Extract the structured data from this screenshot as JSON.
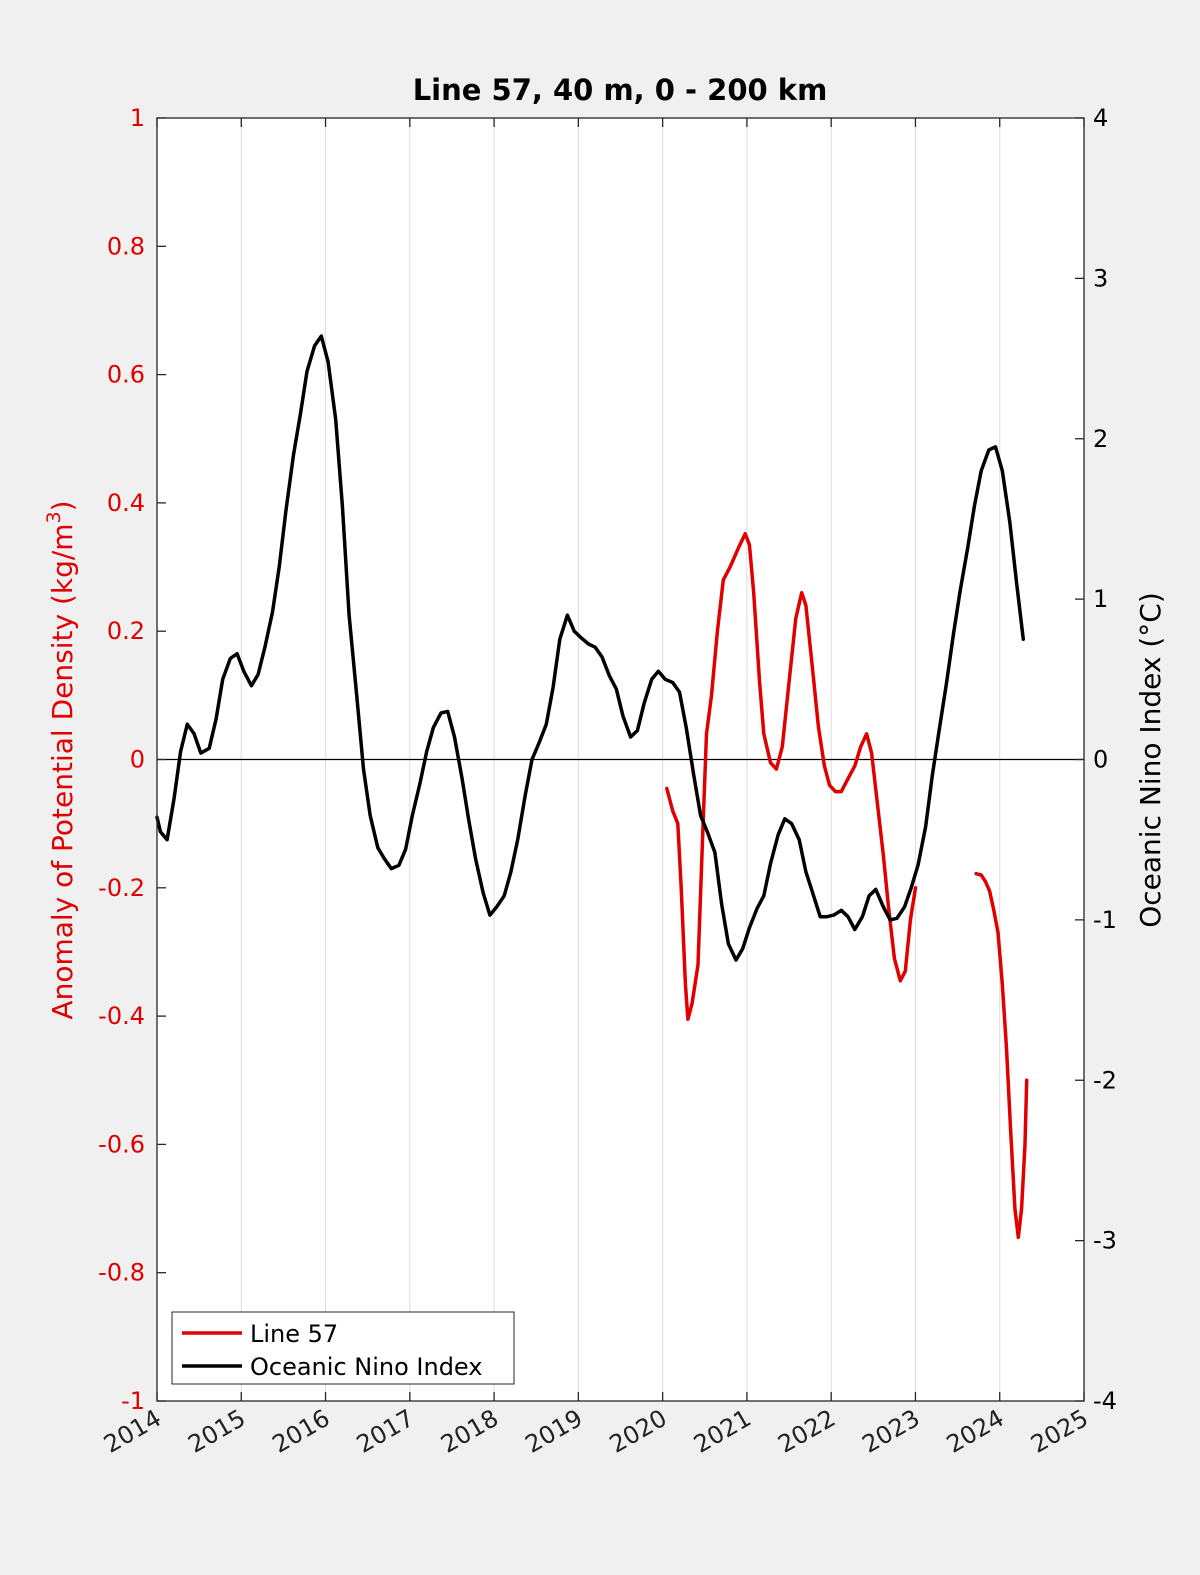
{
  "chart_data": {
    "type": "line",
    "title": "Line 57, 40 m, 0 - 200 km",
    "xlabel": "",
    "xlim": [
      2014,
      2025
    ],
    "x_ticks": [
      "2014",
      "2015",
      "2016",
      "2017",
      "2018",
      "2019",
      "2020",
      "2021",
      "2022",
      "2023",
      "2024",
      "2025"
    ],
    "y_left": {
      "label_main": "Anomaly of Potential Density (kg/m",
      "label_sup": "3",
      "label_end": ")",
      "ylim": [
        -1,
        1
      ],
      "ticks": [
        "1",
        "0.8",
        "0.6",
        "0.4",
        "0.2",
        "0",
        "-0.2",
        "-0.4",
        "-0.6",
        "-0.8",
        "-1"
      ]
    },
    "y_right": {
      "label": "Oceanic Nino Index (°C)",
      "ylim": [
        -4,
        4
      ],
      "ticks": [
        "4",
        "3",
        "2",
        "1",
        "0",
        "-1",
        "-2",
        "-3",
        "-4"
      ]
    },
    "grid": "vertical",
    "legend_position": "bottom-left",
    "series": [
      {
        "name": "Line 57",
        "axis": "left",
        "color": "#e00000",
        "segments": [
          [
            [
              2020.05,
              -0.045
            ],
            [
              2020.12,
              -0.08
            ],
            [
              2020.18,
              -0.1
            ],
            [
              2020.22,
              -0.2
            ],
            [
              2020.27,
              -0.35
            ],
            [
              2020.3,
              -0.405
            ],
            [
              2020.35,
              -0.38
            ],
            [
              2020.42,
              -0.32
            ],
            [
              2020.48,
              -0.1
            ],
            [
              2020.52,
              0.04
            ],
            [
              2020.58,
              0.1
            ],
            [
              2020.65,
              0.2
            ],
            [
              2020.72,
              0.28
            ],
            [
              2020.8,
              0.3
            ],
            [
              2020.9,
              0.33
            ],
            [
              2020.98,
              0.352
            ],
            [
              2021.03,
              0.335
            ],
            [
              2021.08,
              0.26
            ],
            [
              2021.15,
              0.12
            ],
            [
              2021.2,
              0.04
            ],
            [
              2021.28,
              -0.005
            ],
            [
              2021.35,
              -0.015
            ],
            [
              2021.42,
              0.02
            ],
            [
              2021.5,
              0.12
            ],
            [
              2021.58,
              0.22
            ],
            [
              2021.65,
              0.26
            ],
            [
              2021.7,
              0.24
            ],
            [
              2021.78,
              0.14
            ],
            [
              2021.85,
              0.05
            ],
            [
              2021.92,
              -0.01
            ],
            [
              2021.98,
              -0.04
            ],
            [
              2022.05,
              -0.05
            ],
            [
              2022.12,
              -0.05
            ],
            [
              2022.2,
              -0.03
            ],
            [
              2022.28,
              -0.01
            ],
            [
              2022.35,
              0.02
            ],
            [
              2022.42,
              0.04
            ],
            [
              2022.48,
              0.01
            ],
            [
              2022.55,
              -0.07
            ],
            [
              2022.62,
              -0.15
            ],
            [
              2022.68,
              -0.23
            ],
            [
              2022.75,
              -0.31
            ],
            [
              2022.82,
              -0.345
            ],
            [
              2022.88,
              -0.33
            ],
            [
              2022.94,
              -0.25
            ],
            [
              2023.0,
              -0.2
            ]
          ],
          [
            [
              2023.72,
              -0.178
            ],
            [
              2023.78,
              -0.18
            ],
            [
              2023.83,
              -0.19
            ],
            [
              2023.88,
              -0.205
            ],
            [
              2023.93,
              -0.235
            ],
            [
              2023.98,
              -0.27
            ],
            [
              2024.03,
              -0.35
            ],
            [
              2024.08,
              -0.45
            ],
            [
              2024.13,
              -0.58
            ],
            [
              2024.18,
              -0.7
            ],
            [
              2024.22,
              -0.745
            ],
            [
              2024.26,
              -0.7
            ],
            [
              2024.3,
              -0.6
            ],
            [
              2024.32,
              -0.5
            ]
          ]
        ]
      },
      {
        "name": "Oceanic Nino Index",
        "axis": "right",
        "color": "#000000",
        "segments": [
          [
            [
              2014.0,
              -0.36
            ],
            [
              2014.04,
              -0.45
            ],
            [
              2014.12,
              -0.5
            ],
            [
              2014.2,
              -0.25
            ],
            [
              2014.28,
              0.05
            ],
            [
              2014.36,
              0.22
            ],
            [
              2014.44,
              0.16
            ],
            [
              2014.52,
              0.04
            ],
            [
              2014.62,
              0.07
            ],
            [
              2014.7,
              0.25
            ],
            [
              2014.78,
              0.5
            ],
            [
              2014.87,
              0.63
            ],
            [
              2014.95,
              0.66
            ],
            [
              2015.03,
              0.55
            ],
            [
              2015.12,
              0.46
            ],
            [
              2015.2,
              0.53
            ],
            [
              2015.28,
              0.7
            ],
            [
              2015.37,
              0.92
            ],
            [
              2015.45,
              1.2
            ],
            [
              2015.53,
              1.55
            ],
            [
              2015.62,
              1.9
            ],
            [
              2015.7,
              2.15
            ],
            [
              2015.78,
              2.42
            ],
            [
              2015.87,
              2.58
            ],
            [
              2015.95,
              2.64
            ],
            [
              2016.03,
              2.48
            ],
            [
              2016.12,
              2.12
            ],
            [
              2016.2,
              1.58
            ],
            [
              2016.28,
              0.9
            ],
            [
              2016.37,
              0.4
            ],
            [
              2016.45,
              -0.06
            ],
            [
              2016.53,
              -0.35
            ],
            [
              2016.62,
              -0.55
            ],
            [
              2016.7,
              -0.62
            ],
            [
              2016.78,
              -0.68
            ],
            [
              2016.87,
              -0.66
            ],
            [
              2016.95,
              -0.56
            ],
            [
              2017.03,
              -0.35
            ],
            [
              2017.12,
              -0.15
            ],
            [
              2017.2,
              0.05
            ],
            [
              2017.28,
              0.2
            ],
            [
              2017.37,
              0.29
            ],
            [
              2017.45,
              0.3
            ],
            [
              2017.53,
              0.14
            ],
            [
              2017.62,
              -0.12
            ],
            [
              2017.7,
              -0.38
            ],
            [
              2017.78,
              -0.62
            ],
            [
              2017.87,
              -0.83
            ],
            [
              2017.95,
              -0.97
            ],
            [
              2018.03,
              -0.92
            ],
            [
              2018.12,
              -0.85
            ],
            [
              2018.2,
              -0.7
            ],
            [
              2018.28,
              -0.5
            ],
            [
              2018.37,
              -0.22
            ],
            [
              2018.45,
              0.0
            ],
            [
              2018.53,
              0.1
            ],
            [
              2018.62,
              0.22
            ],
            [
              2018.7,
              0.45
            ],
            [
              2018.78,
              0.75
            ],
            [
              2018.87,
              0.9
            ],
            [
              2018.95,
              0.8
            ],
            [
              2019.03,
              0.76
            ],
            [
              2019.12,
              0.72
            ],
            [
              2019.2,
              0.7
            ],
            [
              2019.28,
              0.64
            ],
            [
              2019.37,
              0.52
            ],
            [
              2019.45,
              0.44
            ],
            [
              2019.53,
              0.27
            ],
            [
              2019.62,
              0.14
            ],
            [
              2019.7,
              0.18
            ],
            [
              2019.78,
              0.35
            ],
            [
              2019.87,
              0.5
            ],
            [
              2019.95,
              0.55
            ],
            [
              2020.03,
              0.5
            ],
            [
              2020.12,
              0.48
            ],
            [
              2020.2,
              0.42
            ],
            [
              2020.28,
              0.2
            ],
            [
              2020.37,
              -0.1
            ],
            [
              2020.45,
              -0.35
            ],
            [
              2020.53,
              -0.45
            ],
            [
              2020.62,
              -0.58
            ],
            [
              2020.7,
              -0.9
            ],
            [
              2020.78,
              -1.15
            ],
            [
              2020.87,
              -1.25
            ],
            [
              2020.95,
              -1.18
            ],
            [
              2021.03,
              -1.05
            ],
            [
              2021.12,
              -0.93
            ],
            [
              2021.2,
              -0.85
            ],
            [
              2021.28,
              -0.65
            ],
            [
              2021.37,
              -0.47
            ],
            [
              2021.45,
              -0.37
            ],
            [
              2021.53,
              -0.4
            ],
            [
              2021.62,
              -0.5
            ],
            [
              2021.7,
              -0.7
            ],
            [
              2021.78,
              -0.83
            ],
            [
              2021.87,
              -0.98
            ],
            [
              2021.95,
              -0.98
            ],
            [
              2022.03,
              -0.97
            ],
            [
              2022.12,
              -0.94
            ],
            [
              2022.2,
              -0.98
            ],
            [
              2022.28,
              -1.06
            ],
            [
              2022.37,
              -0.98
            ],
            [
              2022.45,
              -0.85
            ],
            [
              2022.53,
              -0.81
            ],
            [
              2022.62,
              -0.92
            ],
            [
              2022.7,
              -1.0
            ],
            [
              2022.78,
              -0.99
            ],
            [
              2022.87,
              -0.92
            ],
            [
              2022.95,
              -0.8
            ],
            [
              2023.03,
              -0.66
            ],
            [
              2023.12,
              -0.42
            ],
            [
              2023.2,
              -0.1
            ],
            [
              2023.28,
              0.18
            ],
            [
              2023.37,
              0.48
            ],
            [
              2023.45,
              0.78
            ],
            [
              2023.53,
              1.05
            ],
            [
              2023.62,
              1.32
            ],
            [
              2023.7,
              1.58
            ],
            [
              2023.78,
              1.8
            ],
            [
              2023.87,
              1.93
            ],
            [
              2023.95,
              1.95
            ],
            [
              2024.03,
              1.8
            ],
            [
              2024.12,
              1.48
            ],
            [
              2024.2,
              1.1
            ],
            [
              2024.28,
              0.75
            ]
          ]
        ]
      }
    ]
  }
}
